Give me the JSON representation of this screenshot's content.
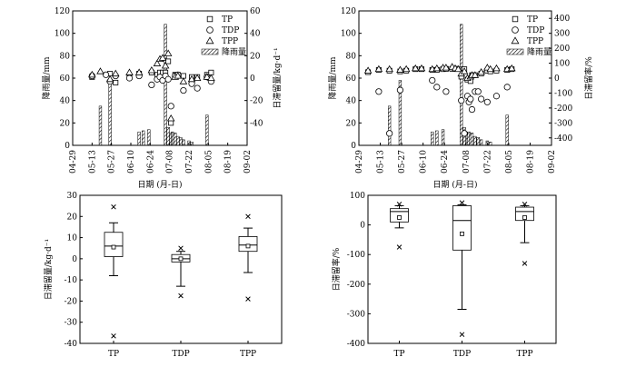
{
  "chart_data": [
    {
      "type": "scatter+bar",
      "panel": "top-left",
      "xlabel": "日期 (月-日)",
      "ylabel_left": "降雨量/mm",
      "ylabel_right": "日滞留量/kg·d⁻¹",
      "x_ticks": [
        "04-29",
        "05-13",
        "05-27",
        "06-10",
        "06-24",
        "07-08",
        "07-22",
        "08-05",
        "08-19",
        "09-02"
      ],
      "ylim_left": [
        0,
        120
      ],
      "yticks_left": [
        "0",
        "20",
        "40",
        "60",
        "80",
        "100",
        "120"
      ],
      "ylim_right": [
        -60,
        60
      ],
      "yticks_right": [
        "-40",
        "-20",
        "0",
        "20",
        "40",
        "60"
      ],
      "legend": [
        {
          "name": "TP",
          "marker": "square"
        },
        {
          "name": "TDP",
          "marker": "circle"
        },
        {
          "name": "TPP",
          "marker": "triangle"
        },
        {
          "name": "降雨量",
          "marker": "hatched-bar"
        }
      ],
      "rain_day": [
        20,
        27,
        48,
        51,
        55,
        67,
        69,
        71,
        72,
        73,
        74,
        76,
        78,
        80,
        84,
        86,
        97
      ],
      "rain_mm": [
        35,
        58,
        12,
        13,
        14,
        108,
        16,
        11,
        12,
        10,
        11,
        8,
        7,
        5,
        4,
        3,
        27
      ],
      "series": [
        {
          "name": "TP",
          "day": [
            14,
            27,
            31,
            41,
            48,
            57,
            61,
            63,
            65,
            67,
            69,
            71,
            74,
            76,
            80,
            86,
            90,
            97,
            100
          ],
          "value": [
            1,
            4,
            -4,
            2,
            4,
            5,
            3,
            5,
            5,
            5,
            15,
            -40,
            3,
            3,
            2,
            1,
            1,
            3,
            5
          ]
        },
        {
          "name": "TDP",
          "day": [
            14,
            24,
            27,
            31,
            41,
            48,
            57,
            61,
            63,
            65,
            67,
            69,
            71,
            74,
            76,
            80,
            86,
            90,
            97,
            100
          ],
          "value": [
            2,
            3,
            -3,
            2,
            0,
            2,
            -6,
            -1,
            1,
            -2,
            2,
            -1,
            -25,
            2,
            3,
            -11,
            -5,
            -9,
            1,
            -3
          ]
        },
        {
          "name": "TPP",
          "day": [
            14,
            20,
            27,
            31,
            41,
            48,
            57,
            61,
            63,
            65,
            67,
            69,
            71,
            74,
            76,
            80,
            86,
            90,
            97,
            100
          ],
          "value": [
            3,
            6,
            -1,
            4,
            5,
            5,
            7,
            13,
            17,
            18,
            11,
            22,
            -36,
            1,
            2,
            -3,
            -1,
            0,
            1,
            0
          ]
        }
      ]
    },
    {
      "type": "scatter+bar",
      "panel": "top-right",
      "xlabel": "日期 (月-日)",
      "ylabel_left": "降雨量/mm",
      "ylabel_right": "日滞留率/%",
      "x_ticks": [
        "04-29",
        "05-13",
        "05-27",
        "06-10",
        "06-24",
        "07-08",
        "07-22",
        "08-05",
        "08-19",
        "09-02"
      ],
      "ylim_left": [
        0,
        120
      ],
      "yticks_left": [
        "0",
        "20",
        "40",
        "60",
        "80",
        "100",
        "120"
      ],
      "ylim_right": [
        -450,
        450
      ],
      "yticks_right": [
        "-400",
        "-300",
        "-200",
        "-100",
        "0",
        "100",
        "200",
        "300",
        "400"
      ],
      "legend": [
        {
          "name": "TP",
          "marker": "square"
        },
        {
          "name": "TDP",
          "marker": "circle"
        },
        {
          "name": "TPP",
          "marker": "triangle"
        },
        {
          "name": "降雨量",
          "marker": "hatched-bar"
        }
      ],
      "rain_day": [
        20,
        27,
        48,
        51,
        55,
        67,
        69,
        71,
        72,
        73,
        74,
        76,
        78,
        80,
        84,
        86,
        97
      ],
      "rain_mm": [
        35,
        58,
        12,
        13,
        14,
        108,
        16,
        11,
        12,
        10,
        11,
        8,
        7,
        5,
        4,
        3,
        27
      ],
      "series": [
        {
          "name": "TP",
          "day": [
            6,
            13,
            20,
            27,
            31,
            37,
            41,
            48,
            51,
            55,
            57,
            61,
            63,
            65,
            67,
            69,
            71,
            73,
            74,
            76,
            80,
            84,
            86,
            90,
            97,
            100
          ],
          "value": [
            40,
            55,
            50,
            45,
            50,
            60,
            60,
            55,
            55,
            60,
            62,
            62,
            62,
            62,
            10,
            60,
            -10,
            -20,
            20,
            20,
            30,
            50,
            45,
            50,
            55,
            60
          ]
        },
        {
          "name": "TDP",
          "day": [
            13,
            20,
            27,
            48,
            51,
            57,
            67,
            69,
            71,
            72,
            73,
            74,
            76,
            78,
            80,
            84,
            90,
            97
          ],
          "value": [
            -90,
            -370,
            -80,
            -15,
            -60,
            -90,
            -150,
            -370,
            -120,
            -160,
            -140,
            -210,
            -90,
            -90,
            -140,
            -160,
            -120,
            -60
          ]
        },
        {
          "name": "TPP",
          "day": [
            6,
            13,
            20,
            27,
            31,
            37,
            41,
            48,
            51,
            55,
            57,
            61,
            63,
            65,
            67,
            69,
            71,
            73,
            74,
            76,
            80,
            84,
            86,
            90,
            97,
            100
          ],
          "value": [
            50,
            60,
            60,
            55,
            60,
            65,
            65,
            60,
            65,
            70,
            70,
            75,
            65,
            60,
            30,
            45,
            0,
            10,
            20,
            20,
            40,
            70,
            60,
            65,
            60,
            65
          ]
        }
      ]
    },
    {
      "type": "box",
      "panel": "bottom-left",
      "categories": [
        "TP",
        "TDP",
        "TPP"
      ],
      "ylabel": "日滞留量/kg·d⁻¹",
      "ylim": [
        -40,
        30
      ],
      "yticks": [
        "-40",
        "-30",
        "-20",
        "-10",
        "0",
        "10",
        "20",
        "30"
      ],
      "boxes": [
        {
          "name": "TP",
          "whisker_low": -8,
          "q1": 1,
          "median": 6,
          "q3": 12.5,
          "whisker_high": 17,
          "mean": 5.5,
          "outliers": [
            24.5,
            -36.5
          ]
        },
        {
          "name": "TDP",
          "whisker_low": -13,
          "q1": -1.5,
          "median": 0,
          "q3": 2,
          "whisker_high": 3.5,
          "mean": 0,
          "outliers": [
            5,
            -17.5
          ]
        },
        {
          "name": "TPP",
          "whisker_low": -6.5,
          "q1": 3.5,
          "median": 6.5,
          "q3": 10.5,
          "whisker_high": 14.5,
          "mean": 6,
          "outliers": [
            20,
            -19
          ]
        }
      ]
    },
    {
      "type": "box",
      "panel": "bottom-right",
      "categories": [
        "TP",
        "TDP",
        "TPP"
      ],
      "ylabel": "日滞留率/%",
      "ylim": [
        -400,
        100
      ],
      "yticks": [
        "-400",
        "-300",
        "-200",
        "-100",
        "0",
        "100"
      ],
      "boxes": [
        {
          "name": "TP",
          "whisker_low": -10,
          "q1": 10,
          "median": 45,
          "q3": 55,
          "whisker_high": 65,
          "mean": 25,
          "outliers": [
            70,
            -75
          ]
        },
        {
          "name": "TDP",
          "whisker_low": -285,
          "q1": -85,
          "median": 15,
          "q3": 65,
          "whisker_high": 68,
          "mean": -30,
          "outliers": [
            75,
            -370
          ]
        },
        {
          "name": "TPP",
          "whisker_low": -60,
          "q1": 15,
          "median": 45,
          "q3": 60,
          "whisker_high": 65,
          "mean": 25,
          "outliers": [
            70,
            -130
          ]
        }
      ]
    }
  ]
}
